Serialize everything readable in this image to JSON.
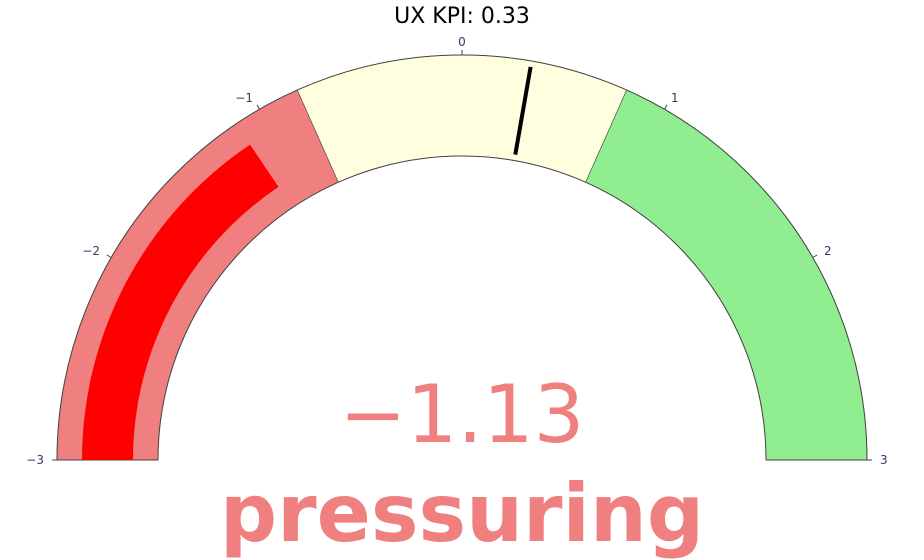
{
  "chart_data": {
    "type": "gauge",
    "title": "UX KPI: 0.33",
    "range": [
      -3,
      3
    ],
    "value": -1.13,
    "value_label": "−1.13",
    "status_label": "pressuring",
    "threshold": 0.33,
    "ticks": [
      {
        "value": -3,
        "label": "−3"
      },
      {
        "value": -2,
        "label": "−2"
      },
      {
        "value": -1,
        "label": "−1"
      },
      {
        "value": 0,
        "label": "0"
      },
      {
        "value": 1,
        "label": "1"
      },
      {
        "value": 2,
        "label": "2"
      },
      {
        "value": 3,
        "label": "3"
      }
    ],
    "steps": [
      {
        "range": [
          -3,
          -0.8
        ],
        "color": "#f08080"
      },
      {
        "range": [
          -0.8,
          0.8
        ],
        "color": "#ffffe0"
      },
      {
        "range": [
          0.8,
          3
        ],
        "color": "#90ee90"
      }
    ],
    "bar_color": "#ff0000",
    "value_color": "#f08080",
    "threshold_color": "#000000"
  }
}
